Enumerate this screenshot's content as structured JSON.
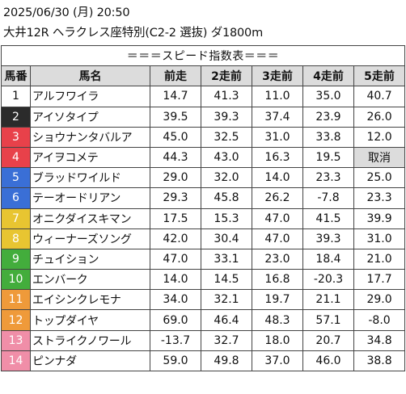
{
  "header": {
    "line1": "2025/06/30 (月) 20:50",
    "line2": "大井12R ヘラクレス座特別(C2-2 選抜) ダ1800m"
  },
  "table": {
    "banner": "＝＝＝スピード指数表＝＝＝",
    "columns": [
      "馬番",
      "馬名",
      "前走",
      "2走前",
      "3走前",
      "4走前",
      "5走前"
    ],
    "rows": [
      {
        "num": "1",
        "name": "アルフワイラ",
        "vals": [
          "14.7",
          "41.3",
          "11.0",
          "35.0",
          "40.7"
        ],
        "bg": "#ffffff",
        "fg": "#111111"
      },
      {
        "num": "2",
        "name": "アイソタイプ",
        "vals": [
          "39.5",
          "39.3",
          "37.4",
          "23.9",
          "26.0"
        ],
        "bg": "#2b2b2b",
        "fg": "#ffffff"
      },
      {
        "num": "3",
        "name": "ショウナンタバルア",
        "vals": [
          "45.0",
          "32.5",
          "31.0",
          "33.8",
          "12.0"
        ],
        "bg": "#e8414a",
        "fg": "#ffffff"
      },
      {
        "num": "4",
        "name": "アイヲコメテ",
        "vals": [
          "44.3",
          "43.0",
          "16.3",
          "19.5",
          "取消"
        ],
        "bg": "#e8414a",
        "fg": "#ffffff"
      },
      {
        "num": "5",
        "name": "ブラッドワイルド",
        "vals": [
          "29.0",
          "32.0",
          "14.0",
          "23.3",
          "25.0"
        ],
        "bg": "#3a6fd6",
        "fg": "#ffffff"
      },
      {
        "num": "6",
        "name": "テーオードリアン",
        "vals": [
          "29.3",
          "45.8",
          "26.2",
          "-7.8",
          "23.3"
        ],
        "bg": "#3a6fd6",
        "fg": "#ffffff"
      },
      {
        "num": "7",
        "name": "オニクダイスキマン",
        "vals": [
          "17.5",
          "15.3",
          "47.0",
          "41.5",
          "39.9"
        ],
        "bg": "#e8c531",
        "fg": "#ffffff"
      },
      {
        "num": "8",
        "name": "ウィーナーズソング",
        "vals": [
          "42.0",
          "30.4",
          "47.0",
          "39.3",
          "31.0"
        ],
        "bg": "#e8c531",
        "fg": "#ffffff"
      },
      {
        "num": "9",
        "name": "チュイション",
        "vals": [
          "47.0",
          "33.1",
          "23.0",
          "18.4",
          "21.0"
        ],
        "bg": "#43ad3c",
        "fg": "#ffffff"
      },
      {
        "num": "10",
        "name": "エンバーク",
        "vals": [
          "14.0",
          "14.5",
          "16.8",
          "-20.3",
          "17.7"
        ],
        "bg": "#43ad3c",
        "fg": "#ffffff"
      },
      {
        "num": "11",
        "name": "エイシンクレモナ",
        "vals": [
          "34.0",
          "32.1",
          "19.7",
          "21.1",
          "29.0"
        ],
        "bg": "#ef9a3a",
        "fg": "#ffffff"
      },
      {
        "num": "12",
        "name": "トップダイヤ",
        "vals": [
          "69.0",
          "46.4",
          "48.3",
          "57.1",
          "-8.0"
        ],
        "bg": "#ef9a3a",
        "fg": "#ffffff"
      },
      {
        "num": "13",
        "name": "ストライクノワール",
        "vals": [
          "-13.7",
          "32.7",
          "18.0",
          "20.7",
          "34.8"
        ],
        "bg": "#f08ea8",
        "fg": "#ffffff"
      },
      {
        "num": "14",
        "name": "ピンナダ",
        "vals": [
          "59.0",
          "49.8",
          "37.0",
          "46.0",
          "38.8"
        ],
        "bg": "#f08ea8",
        "fg": "#ffffff"
      }
    ],
    "cancel_label": "取消",
    "cancel_bg": "#dcdcdc"
  }
}
